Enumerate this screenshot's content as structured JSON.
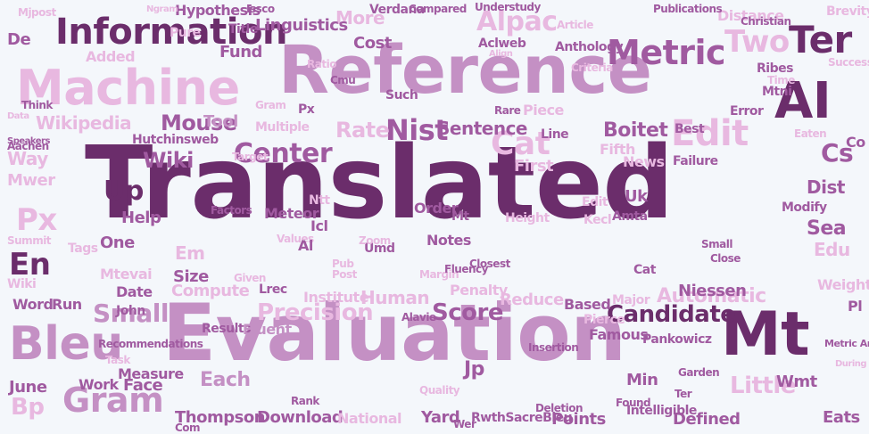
{
  "palette": {
    "dark": "#6b2d6b",
    "mid": "#a05aa0",
    "soft": "#c490c4",
    "light": "#e8b8e0",
    "pale": "#e5cfe3",
    "background": "#f4f7fb"
  },
  "words": [
    {
      "text": "Translated",
      "shade": "dark"
    },
    {
      "text": "Evaluation",
      "shade": "soft"
    },
    {
      "text": "Reference",
      "shade": "soft"
    },
    {
      "text": "Machine",
      "shade": "light"
    },
    {
      "text": "Information",
      "shade": "dark"
    },
    {
      "text": "Bleu",
      "shade": "soft"
    },
    {
      "text": "Mt",
      "shade": "dark"
    },
    {
      "text": "AI",
      "shade": "dark"
    },
    {
      "text": "Metric",
      "shade": "mid"
    },
    {
      "text": "Alpac",
      "shade": "light"
    },
    {
      "text": "Ter",
      "shade": "dark"
    },
    {
      "text": "Two",
      "shade": "light"
    },
    {
      "text": "Edit",
      "shade": "light"
    },
    {
      "text": "Cat",
      "shade": "light"
    },
    {
      "text": "Center",
      "shade": "mid"
    },
    {
      "text": "Nist",
      "shade": "mid"
    },
    {
      "text": "Candidate",
      "shade": "dark"
    },
    {
      "text": "Score",
      "shade": "mid"
    },
    {
      "text": "Precision",
      "shade": "light"
    },
    {
      "text": "Small",
      "shade": "soft"
    },
    {
      "text": "Gram",
      "shade": "soft"
    },
    {
      "text": "En",
      "shade": "dark"
    },
    {
      "text": "Px",
      "shade": "light"
    },
    {
      "text": "Wiki",
      "shade": "mid"
    },
    {
      "text": "Mouse",
      "shade": "mid"
    },
    {
      "text": "Wikipedia",
      "shade": "light"
    },
    {
      "text": "Cost",
      "shade": "mid"
    },
    {
      "text": "More",
      "shade": "light"
    },
    {
      "text": "Fund",
      "shade": "mid"
    },
    {
      "text": "Added",
      "shade": "light"
    },
    {
      "text": "Rate",
      "shade": "light"
    },
    {
      "text": "Tool",
      "shade": "soft"
    },
    {
      "text": "Boitet",
      "shade": "mid"
    },
    {
      "text": "Sentence",
      "shade": "mid"
    },
    {
      "text": "Automatic",
      "shade": "light"
    },
    {
      "text": "Niessen",
      "shade": "mid"
    },
    {
      "text": "Reduce",
      "shade": "light"
    },
    {
      "text": "Little",
      "shade": "light"
    },
    {
      "text": "Human",
      "shade": "light"
    },
    {
      "text": "Download",
      "shade": "mid"
    },
    {
      "text": "Thompson",
      "shade": "mid"
    },
    {
      "text": "Yard",
      "shade": "mid"
    },
    {
      "text": "Defined",
      "shade": "mid"
    },
    {
      "text": "Eats",
      "shade": "mid"
    },
    {
      "text": "Points",
      "shade": "mid"
    },
    {
      "text": "Compute",
      "shade": "light"
    },
    {
      "text": "Results",
      "shade": "mid"
    },
    {
      "text": "Fluent",
      "shade": "soft"
    },
    {
      "text": "Measure",
      "shade": "mid"
    },
    {
      "text": "Work",
      "shade": "mid"
    },
    {
      "text": "Face",
      "shade": "mid"
    },
    {
      "text": "Each",
      "shade": "soft"
    },
    {
      "text": "June",
      "shade": "mid"
    },
    {
      "text": "Bp",
      "shade": "light"
    },
    {
      "text": "Date",
      "shade": "mid"
    },
    {
      "text": "Size",
      "shade": "mid"
    },
    {
      "text": "Em",
      "shade": "light"
    },
    {
      "text": "Help",
      "shade": "mid"
    },
    {
      "text": "One",
      "shade": "mid"
    },
    {
      "text": "Up",
      "shade": "dark"
    },
    {
      "text": "Mtevai",
      "shade": "light"
    },
    {
      "text": "Tags",
      "shade": "light"
    },
    {
      "text": "Word",
      "shade": "mid"
    },
    {
      "text": "Run",
      "shade": "mid"
    },
    {
      "text": "Dist",
      "shade": "mid"
    },
    {
      "text": "Edu",
      "shade": "light"
    },
    {
      "text": "Sea",
      "shade": "mid"
    },
    {
      "text": "Cs",
      "shade": "mid"
    },
    {
      "text": "Uk",
      "shade": "mid"
    },
    {
      "text": "Amta",
      "shade": "mid"
    },
    {
      "text": "Distance",
      "shade": "light"
    },
    {
      "text": "Brevity",
      "shade": "light"
    },
    {
      "text": "Mtni",
      "shade": "mid"
    },
    {
      "text": "Ribes",
      "shade": "mid"
    },
    {
      "text": "Way",
      "shade": "light"
    },
    {
      "text": "Mwer",
      "shade": "light"
    },
    {
      "text": "De",
      "shade": "mid"
    },
    {
      "text": "Linguistics",
      "shade": "mid"
    },
    {
      "text": "Hypothesis",
      "shade": "mid"
    },
    {
      "text": "Title",
      "shade": "mid"
    },
    {
      "text": "Hutchinsweb",
      "shade": "mid"
    },
    {
      "text": "Publications",
      "shade": "mid"
    },
    {
      "text": "Christian",
      "shade": "mid"
    },
    {
      "text": "Aclweb",
      "shade": "mid"
    },
    {
      "text": "Anthology",
      "shade": "mid"
    },
    {
      "text": "Meteor",
      "shade": "mid"
    },
    {
      "text": "Order",
      "shade": "mid"
    },
    {
      "text": "Notes",
      "shade": "mid"
    },
    {
      "text": "Jp",
      "shade": "mid"
    },
    {
      "text": "Min",
      "shade": "mid"
    },
    {
      "text": "Ter",
      "shade": "mid"
    },
    {
      "text": "Wmt",
      "shade": "mid"
    },
    {
      "text": "Metric Art",
      "shade": "mid"
    },
    {
      "text": "Intelligible",
      "shade": "mid"
    },
    {
      "text": "RwthSacreBleu",
      "shade": "mid"
    },
    {
      "text": "Quality",
      "shade": "light"
    },
    {
      "text": "National",
      "shade": "light"
    },
    {
      "text": "Com",
      "shade": "mid"
    },
    {
      "text": "Institute",
      "shade": "light"
    },
    {
      "text": "Lrec",
      "shade": "mid"
    },
    {
      "text": "Penalty",
      "shade": "light"
    },
    {
      "text": "Based",
      "shade": "mid"
    },
    {
      "text": "Pierce",
      "shade": "light"
    },
    {
      "text": "Famous",
      "shade": "mid"
    },
    {
      "text": "Pankowicz",
      "shade": "mid"
    },
    {
      "text": "First",
      "shade": "light"
    },
    {
      "text": "Fifth",
      "shade": "light"
    },
    {
      "text": "News",
      "shade": "light"
    },
    {
      "text": "Failure",
      "shade": "mid"
    },
    {
      "text": "Best",
      "shade": "mid"
    },
    {
      "text": "Icl",
      "shade": "mid"
    },
    {
      "text": "Ntt",
      "shade": "light"
    },
    {
      "text": "Umd",
      "shade": "mid"
    },
    {
      "text": "Pub",
      "shade": "light"
    },
    {
      "text": "Post",
      "shade": "light"
    },
    {
      "text": "John",
      "shade": "mid"
    },
    {
      "text": "Wiki",
      "shade": "light"
    },
    {
      "text": "Summit",
      "shade": "light"
    },
    {
      "text": "Aachen",
      "shade": "mid"
    },
    {
      "text": "Think",
      "shade": "mid"
    },
    {
      "text": "Data",
      "shade": "light"
    },
    {
      "text": "Speakers",
      "shade": "mid"
    },
    {
      "text": "Ngram",
      "shade": "light"
    },
    {
      "text": "Mjpost",
      "shade": "light"
    },
    {
      "text": "Pure",
      "shade": "light"
    },
    {
      "text": "Issco",
      "shade": "mid"
    },
    {
      "text": "Verdana",
      "shade": "mid"
    },
    {
      "text": "Compared",
      "shade": "mid"
    },
    {
      "text": "Article",
      "shade": "light"
    },
    {
      "text": "Align",
      "shade": "light"
    },
    {
      "text": "Criteria",
      "shade": "light"
    },
    {
      "text": "Cmu",
      "shade": "mid"
    },
    {
      "text": "Such",
      "shade": "mid"
    },
    {
      "text": "Piece",
      "shade": "light"
    },
    {
      "text": "Line",
      "shade": "mid"
    },
    {
      "text": "Gram",
      "shade": "light"
    },
    {
      "text": "Multiple",
      "shade": "light"
    },
    {
      "text": "Target",
      "shade": "light"
    },
    {
      "text": "Factors",
      "shade": "mid"
    },
    {
      "text": "Values",
      "shade": "light"
    },
    {
      "text": "Given",
      "shade": "light"
    },
    {
      "text": "Margin",
      "shade": "light"
    },
    {
      "text": "Closest",
      "shade": "mid"
    },
    {
      "text": "Height",
      "shade": "light"
    },
    {
      "text": "Kecl",
      "shade": "light"
    },
    {
      "text": "Edit",
      "shade": "light"
    },
    {
      "text": "Small",
      "shade": "mid"
    },
    {
      "text": "Close",
      "shade": "mid"
    },
    {
      "text": "Modify",
      "shade": "mid"
    },
    {
      "text": "Error",
      "shade": "mid"
    },
    {
      "text": "Eaten",
      "shade": "light"
    },
    {
      "text": "Time",
      "shade": "light"
    },
    {
      "text": "Success",
      "shade": "light"
    },
    {
      "text": "Weight",
      "shade": "light"
    },
    {
      "text": "During",
      "shade": "light"
    },
    {
      "text": "Garden",
      "shade": "mid"
    },
    {
      "text": "Major",
      "shade": "light"
    },
    {
      "text": "Cat",
      "shade": "mid"
    },
    {
      "text": "Recommendations",
      "shade": "mid"
    },
    {
      "text": "Task",
      "shade": "light"
    },
    {
      "text": "Deletion",
      "shade": "mid"
    },
    {
      "text": "Insertion",
      "shade": "mid"
    },
    {
      "text": "Fluency",
      "shade": "mid"
    },
    {
      "text": "Alavie",
      "shade": "mid"
    },
    {
      "text": "Zoom",
      "shade": "light"
    },
    {
      "text": "Px",
      "shade": "mid"
    },
    {
      "text": "Ratio",
      "shade": "light"
    },
    {
      "text": "Understudy",
      "shade": "mid"
    },
    {
      "text": "Rare",
      "shade": "mid"
    },
    {
      "text": "Rank",
      "shade": "mid"
    },
    {
      "text": "Found",
      "shade": "mid"
    },
    {
      "text": "Wer",
      "shade": "mid"
    },
    {
      "text": "Pl",
      "shade": "mid"
    },
    {
      "text": "Co",
      "shade": "mid"
    },
    {
      "text": "Al",
      "shade": "mid"
    },
    {
      "text": "Mt",
      "shade": "mid"
    }
  ]
}
